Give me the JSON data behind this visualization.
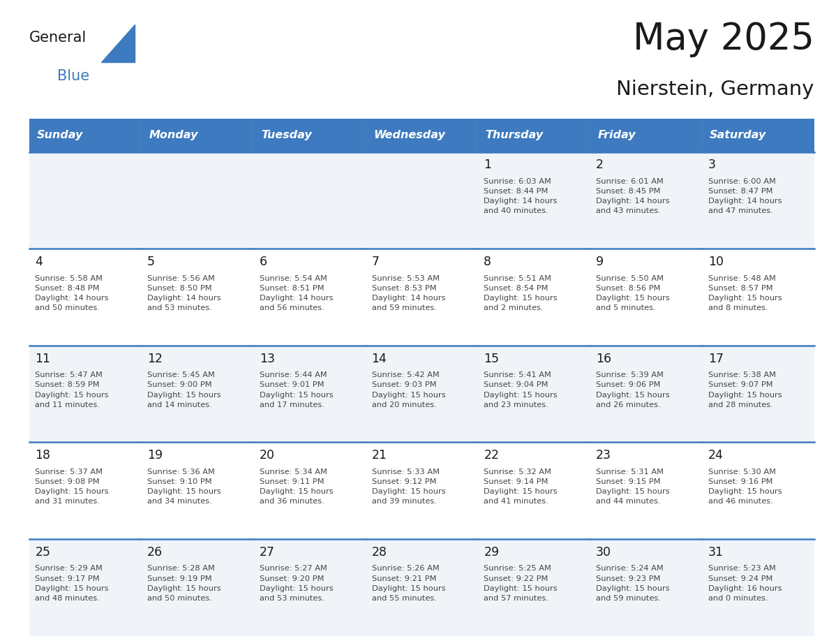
{
  "title": "May 2025",
  "subtitle": "Nierstein, Germany",
  "days_of_week": [
    "Sunday",
    "Monday",
    "Tuesday",
    "Wednesday",
    "Thursday",
    "Friday",
    "Saturday"
  ],
  "header_bg": "#3D7ABF",
  "header_text": "#FFFFFF",
  "cell_bg_odd": "#F0F4F8",
  "cell_bg_even": "#FFFFFF",
  "cell_text": "#333333",
  "border_color": "#3D7ABF",
  "day_color": "#1A1A1A",
  "info_color": "#444444",
  "calendar": [
    [
      null,
      null,
      null,
      null,
      {
        "day": 1,
        "sunrise": "6:03 AM",
        "sunset": "8:44 PM",
        "daylight_h": "14",
        "daylight_m": "40"
      },
      {
        "day": 2,
        "sunrise": "6:01 AM",
        "sunset": "8:45 PM",
        "daylight_h": "14",
        "daylight_m": "43"
      },
      {
        "day": 3,
        "sunrise": "6:00 AM",
        "sunset": "8:47 PM",
        "daylight_h": "14",
        "daylight_m": "47"
      }
    ],
    [
      {
        "day": 4,
        "sunrise": "5:58 AM",
        "sunset": "8:48 PM",
        "daylight_h": "14",
        "daylight_m": "50"
      },
      {
        "day": 5,
        "sunrise": "5:56 AM",
        "sunset": "8:50 PM",
        "daylight_h": "14",
        "daylight_m": "53"
      },
      {
        "day": 6,
        "sunrise": "5:54 AM",
        "sunset": "8:51 PM",
        "daylight_h": "14",
        "daylight_m": "56"
      },
      {
        "day": 7,
        "sunrise": "5:53 AM",
        "sunset": "8:53 PM",
        "daylight_h": "14",
        "daylight_m": "59"
      },
      {
        "day": 8,
        "sunrise": "5:51 AM",
        "sunset": "8:54 PM",
        "daylight_h": "15",
        "daylight_m": "2"
      },
      {
        "day": 9,
        "sunrise": "5:50 AM",
        "sunset": "8:56 PM",
        "daylight_h": "15",
        "daylight_m": "5"
      },
      {
        "day": 10,
        "sunrise": "5:48 AM",
        "sunset": "8:57 PM",
        "daylight_h": "15",
        "daylight_m": "8"
      }
    ],
    [
      {
        "day": 11,
        "sunrise": "5:47 AM",
        "sunset": "8:59 PM",
        "daylight_h": "15",
        "daylight_m": "11"
      },
      {
        "day": 12,
        "sunrise": "5:45 AM",
        "sunset": "9:00 PM",
        "daylight_h": "15",
        "daylight_m": "14"
      },
      {
        "day": 13,
        "sunrise": "5:44 AM",
        "sunset": "9:01 PM",
        "daylight_h": "15",
        "daylight_m": "17"
      },
      {
        "day": 14,
        "sunrise": "5:42 AM",
        "sunset": "9:03 PM",
        "daylight_h": "15",
        "daylight_m": "20"
      },
      {
        "day": 15,
        "sunrise": "5:41 AM",
        "sunset": "9:04 PM",
        "daylight_h": "15",
        "daylight_m": "23"
      },
      {
        "day": 16,
        "sunrise": "5:39 AM",
        "sunset": "9:06 PM",
        "daylight_h": "15",
        "daylight_m": "26"
      },
      {
        "day": 17,
        "sunrise": "5:38 AM",
        "sunset": "9:07 PM",
        "daylight_h": "15",
        "daylight_m": "28"
      }
    ],
    [
      {
        "day": 18,
        "sunrise": "5:37 AM",
        "sunset": "9:08 PM",
        "daylight_h": "15",
        "daylight_m": "31"
      },
      {
        "day": 19,
        "sunrise": "5:36 AM",
        "sunset": "9:10 PM",
        "daylight_h": "15",
        "daylight_m": "34"
      },
      {
        "day": 20,
        "sunrise": "5:34 AM",
        "sunset": "9:11 PM",
        "daylight_h": "15",
        "daylight_m": "36"
      },
      {
        "day": 21,
        "sunrise": "5:33 AM",
        "sunset": "9:12 PM",
        "daylight_h": "15",
        "daylight_m": "39"
      },
      {
        "day": 22,
        "sunrise": "5:32 AM",
        "sunset": "9:14 PM",
        "daylight_h": "15",
        "daylight_m": "41"
      },
      {
        "day": 23,
        "sunrise": "5:31 AM",
        "sunset": "9:15 PM",
        "daylight_h": "15",
        "daylight_m": "44"
      },
      {
        "day": 24,
        "sunrise": "5:30 AM",
        "sunset": "9:16 PM",
        "daylight_h": "15",
        "daylight_m": "46"
      }
    ],
    [
      {
        "day": 25,
        "sunrise": "5:29 AM",
        "sunset": "9:17 PM",
        "daylight_h": "15",
        "daylight_m": "48"
      },
      {
        "day": 26,
        "sunrise": "5:28 AM",
        "sunset": "9:19 PM",
        "daylight_h": "15",
        "daylight_m": "50"
      },
      {
        "day": 27,
        "sunrise": "5:27 AM",
        "sunset": "9:20 PM",
        "daylight_h": "15",
        "daylight_m": "53"
      },
      {
        "day": 28,
        "sunrise": "5:26 AM",
        "sunset": "9:21 PM",
        "daylight_h": "15",
        "daylight_m": "55"
      },
      {
        "day": 29,
        "sunrise": "5:25 AM",
        "sunset": "9:22 PM",
        "daylight_h": "15",
        "daylight_m": "57"
      },
      {
        "day": 30,
        "sunrise": "5:24 AM",
        "sunset": "9:23 PM",
        "daylight_h": "15",
        "daylight_m": "59"
      },
      {
        "day": 31,
        "sunrise": "5:23 AM",
        "sunset": "9:24 PM",
        "daylight_h": "16",
        "daylight_m": "0"
      }
    ]
  ],
  "logo_text_general": "General",
  "logo_text_blue": "Blue",
  "logo_color_general": "#1A1A1A",
  "logo_color_blue": "#3D7ABF",
  "logo_triangle_color": "#3D7ABF"
}
